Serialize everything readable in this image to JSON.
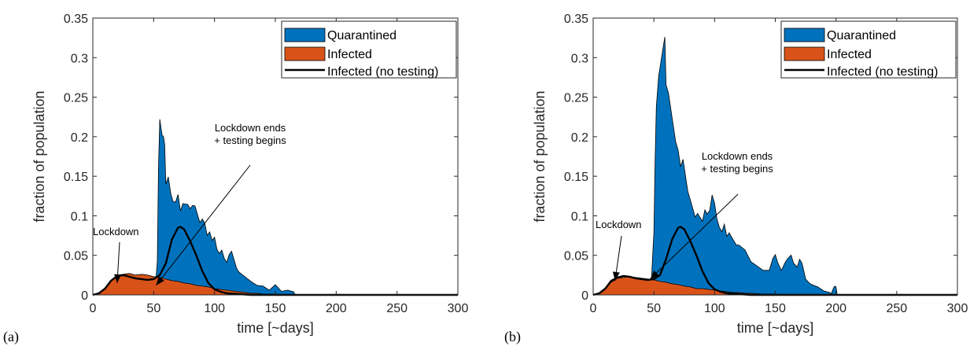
{
  "chart_data": [
    {
      "panel_label": "(a)",
      "type": "area",
      "xlabel": "time [~days]",
      "ylabel": "fraction of population",
      "xlim": [
        0,
        300
      ],
      "ylim": [
        0,
        0.35
      ],
      "xticks": [
        0,
        50,
        100,
        150,
        200,
        250,
        300
      ],
      "yticks": [
        0,
        0.05,
        0.1,
        0.15,
        0.2,
        0.25,
        0.3,
        0.35
      ],
      "ytick_labels": [
        "0",
        "0.05",
        "0.1",
        "0.15",
        "0.2",
        "0.25",
        "0.3",
        "0.35"
      ],
      "grid": false,
      "legend_position": "top-right",
      "legend": [
        "Quarantined",
        "Infected",
        "Infected (no testing)"
      ],
      "colors": {
        "quarantined": "#0072BD",
        "infected": "#D95319",
        "no_testing": "#000000"
      },
      "annotations": [
        {
          "text": "Lockdown",
          "arrow_to": [
            20,
            0.015
          ]
        },
        {
          "text": "Lockdown ends\n+ testing begins",
          "arrow_to": [
            52,
            0.012
          ]
        }
      ],
      "series": [
        {
          "name": "Quarantined",
          "kind": "stacked-area",
          "x": [
            0,
            50,
            52,
            53,
            54,
            55,
            56,
            57,
            58,
            59,
            60,
            62,
            64,
            66,
            68,
            70,
            72,
            74,
            76,
            78,
            80,
            82,
            84,
            86,
            88,
            90,
            92,
            94,
            96,
            98,
            100,
            102,
            104,
            106,
            108,
            110,
            112,
            114,
            116,
            118,
            120,
            125,
            130,
            135,
            140,
            145,
            150,
            155,
            160,
            165,
            166,
            168,
            300
          ],
          "y": [
            0,
            0,
            0,
            0.02,
            0.14,
            0.2,
            0.19,
            0.18,
            0.18,
            0.17,
            0.12,
            0.13,
            0.11,
            0.1,
            0.1,
            0.11,
            0.09,
            0.1,
            0.1,
            0.1,
            0.095,
            0.1,
            0.1,
            0.09,
            0.08,
            0.085,
            0.08,
            0.065,
            0.07,
            0.06,
            0.065,
            0.05,
            0.045,
            0.05,
            0.04,
            0.035,
            0.045,
            0.05,
            0.04,
            0.03,
            0.025,
            0.02,
            0.015,
            0.01,
            0.01,
            0.005,
            0.012,
            0.004,
            0.006,
            0.004,
            0.001,
            0,
            0
          ]
        },
        {
          "name": "Infected",
          "kind": "stacked-area",
          "x": [
            0,
            5,
            10,
            15,
            20,
            25,
            30,
            35,
            40,
            45,
            50,
            55,
            60,
            65,
            70,
            75,
            80,
            85,
            90,
            95,
            100,
            105,
            110,
            115,
            120,
            125,
            130,
            135,
            140,
            150,
            160,
            170,
            300
          ],
          "y": [
            0,
            0.002,
            0.008,
            0.018,
            0.025,
            0.026,
            0.027,
            0.025,
            0.026,
            0.025,
            0.023,
            0.022,
            0.02,
            0.018,
            0.017,
            0.015,
            0.014,
            0.012,
            0.011,
            0.01,
            0.008,
            0.007,
            0.006,
            0.005,
            0.004,
            0.003,
            0.002,
            0.002,
            0.001,
            0.001,
            0,
            0,
            0
          ]
        },
        {
          "name": "Infected (no testing)",
          "kind": "line",
          "x": [
            0,
            5,
            10,
            15,
            20,
            25,
            30,
            35,
            40,
            45,
            50,
            55,
            60,
            65,
            70,
            72,
            75,
            80,
            85,
            90,
            95,
            100,
            105,
            110,
            120,
            130,
            150,
            200,
            300
          ],
          "y": [
            0,
            0.002,
            0.008,
            0.018,
            0.024,
            0.025,
            0.023,
            0.021,
            0.02,
            0.019,
            0.02,
            0.025,
            0.04,
            0.07,
            0.085,
            0.086,
            0.083,
            0.068,
            0.05,
            0.03,
            0.015,
            0.007,
            0.004,
            0.002,
            0.001,
            0,
            0,
            0,
            0
          ]
        }
      ]
    },
    {
      "panel_label": "(b)",
      "type": "area",
      "xlabel": "time [~days]",
      "ylabel": "fraction of population",
      "xlim": [
        0,
        300
      ],
      "ylim": [
        0,
        0.35
      ],
      "xticks": [
        0,
        50,
        100,
        150,
        200,
        250,
        300
      ],
      "yticks": [
        0,
        0.05,
        0.1,
        0.15,
        0.2,
        0.25,
        0.3,
        0.35
      ],
      "ytick_labels": [
        "0",
        "0.05",
        "0.1",
        "0.15",
        "0.2",
        "0.25",
        "0.3",
        "0.35"
      ],
      "grid": false,
      "legend_position": "top-right",
      "legend": [
        "Quarantined",
        "Infected",
        "Infected (no testing)"
      ],
      "colors": {
        "quarantined": "#0072BD",
        "infected": "#D95319",
        "no_testing": "#000000"
      },
      "annotations": [
        {
          "text": "Lockdown",
          "arrow_to": [
            18,
            0.018
          ]
        },
        {
          "text": "Lockdown ends\n+ testing begins",
          "arrow_to": [
            47,
            0.02
          ]
        }
      ],
      "series": [
        {
          "name": "Quarantined",
          "kind": "stacked-area",
          "x": [
            0,
            48,
            49,
            50,
            51,
            52,
            54,
            56,
            58,
            59,
            60,
            62,
            64,
            66,
            68,
            70,
            72,
            74,
            76,
            78,
            80,
            82,
            84,
            86,
            88,
            90,
            92,
            94,
            96,
            98,
            100,
            102,
            104,
            106,
            108,
            110,
            112,
            114,
            116,
            118,
            120,
            125,
            130,
            135,
            140,
            145,
            148,
            150,
            152,
            155,
            158,
            160,
            163,
            165,
            168,
            170,
            172,
            175,
            178,
            180,
            185,
            190,
            195,
            196,
            197,
            198,
            199,
            200,
            201,
            300
          ],
          "y": [
            0,
            0,
            0.03,
            0.06,
            0.15,
            0.22,
            0.26,
            0.28,
            0.3,
            0.31,
            0.25,
            0.24,
            0.22,
            0.2,
            0.18,
            0.17,
            0.15,
            0.16,
            0.14,
            0.12,
            0.11,
            0.1,
            0.09,
            0.095,
            0.09,
            0.085,
            0.1,
            0.095,
            0.1,
            0.12,
            0.11,
            0.09,
            0.08,
            0.075,
            0.085,
            0.07,
            0.075,
            0.07,
            0.065,
            0.06,
            0.06,
            0.055,
            0.04,
            0.035,
            0.03,
            0.03,
            0.045,
            0.05,
            0.04,
            0.03,
            0.04,
            0.045,
            0.05,
            0.04,
            0.035,
            0.045,
            0.04,
            0.02,
            0.015,
            0.013,
            0.01,
            0.005,
            0.003,
            0.001,
            0.005,
            0.009,
            0.011,
            0.01,
            0,
            0
          ]
        },
        {
          "name": "Infected",
          "kind": "stacked-area",
          "x": [
            0,
            5,
            10,
            15,
            20,
            25,
            30,
            35,
            40,
            45,
            50,
            55,
            60,
            65,
            70,
            75,
            80,
            85,
            90,
            95,
            100,
            105,
            110,
            115,
            120,
            125,
            130,
            140,
            150,
            170,
            300
          ],
          "y": [
            0,
            0.002,
            0.008,
            0.016,
            0.021,
            0.022,
            0.023,
            0.022,
            0.021,
            0.02,
            0.019,
            0.017,
            0.016,
            0.014,
            0.013,
            0.011,
            0.01,
            0.008,
            0.008,
            0.007,
            0.006,
            0.005,
            0.004,
            0.003,
            0.003,
            0.002,
            0.002,
            0.001,
            0.001,
            0,
            0
          ]
        },
        {
          "name": "Infected (no testing)",
          "kind": "line",
          "x": [
            0,
            5,
            10,
            15,
            20,
            25,
            30,
            35,
            40,
            45,
            50,
            55,
            60,
            65,
            70,
            72,
            75,
            80,
            85,
            90,
            95,
            100,
            105,
            110,
            120,
            130,
            150,
            200,
            300
          ],
          "y": [
            0,
            0.002,
            0.008,
            0.018,
            0.022,
            0.024,
            0.023,
            0.021,
            0.02,
            0.019,
            0.02,
            0.025,
            0.045,
            0.07,
            0.085,
            0.086,
            0.083,
            0.068,
            0.05,
            0.03,
            0.015,
            0.007,
            0.004,
            0.002,
            0.001,
            0,
            0,
            0,
            0
          ]
        }
      ]
    }
  ]
}
